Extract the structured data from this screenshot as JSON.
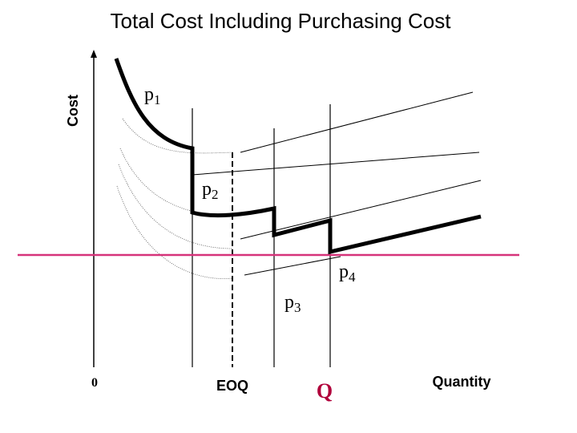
{
  "title": "Total Cost Including Purchasing Cost",
  "axes": {
    "y_label": "Cost",
    "origin_label": "0",
    "x_label": "Quantity"
  },
  "markers": {
    "eoq_label": "EOQ",
    "q_label": "Q"
  },
  "price_labels": [
    {
      "base": "p",
      "sub": "1"
    },
    {
      "base": "p",
      "sub": "2"
    },
    {
      "base": "p",
      "sub": "4"
    },
    {
      "base": "p",
      "sub": "3"
    }
  ],
  "colors": {
    "line": "#000000",
    "reference_line": "#d6337a",
    "q_label": "#b0003a",
    "thin_curve": "#555555"
  }
}
